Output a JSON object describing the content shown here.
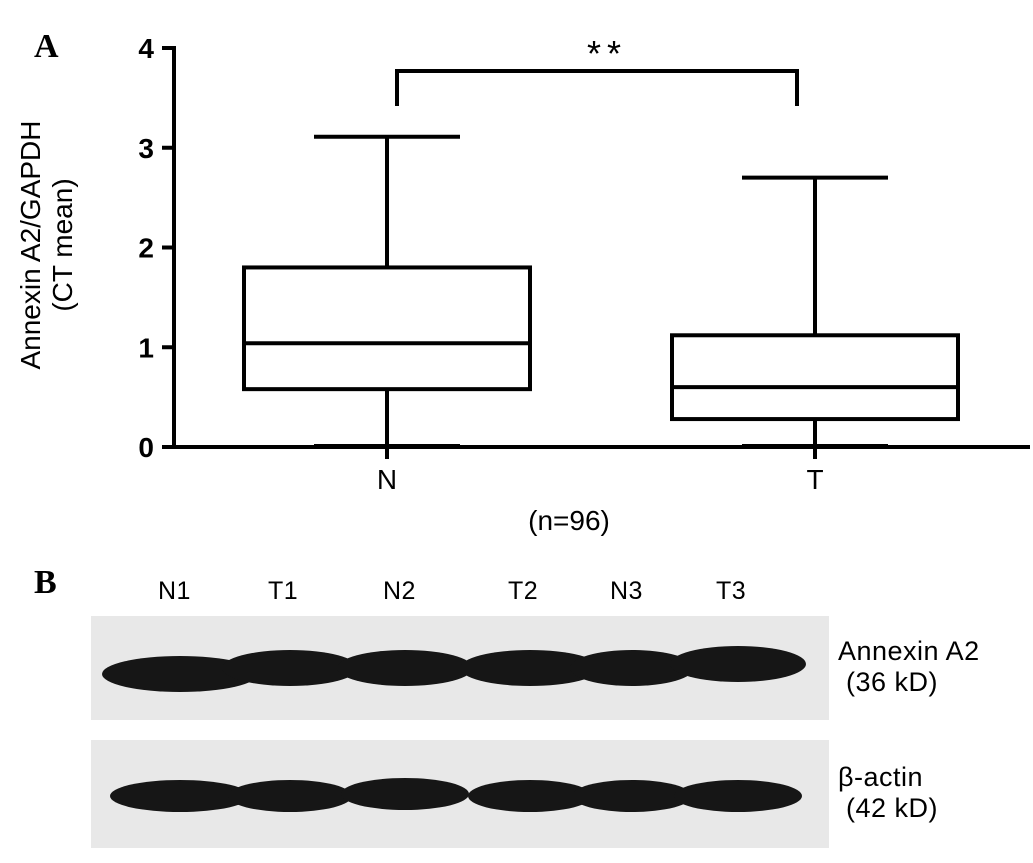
{
  "panel_a": {
    "label": "A",
    "chart_data": {
      "type": "box",
      "ylabel": "Annexin A2/GAPDH (CT mean)",
      "ylabel_lines": [
        "Annexin A2/GAPDH",
        "(CT mean)"
      ],
      "xlabel": "(n=96)",
      "ylim": [
        0,
        4
      ],
      "yticks": [
        "0",
        "1",
        "2",
        "3",
        "4"
      ],
      "categories": [
        "N",
        "T"
      ],
      "boxes": [
        {
          "category": "N",
          "min": 0.01,
          "q1": 0.58,
          "median": 1.04,
          "q3": 1.8,
          "max": 3.11
        },
        {
          "category": "T",
          "min": 0.01,
          "q1": 0.28,
          "median": 0.6,
          "q3": 1.12,
          "max": 2.7
        }
      ],
      "significance": {
        "between": [
          "N",
          "T"
        ],
        "label": "**"
      }
    }
  },
  "panel_b": {
    "label": "B",
    "lanes": [
      "N1",
      "T1",
      "N2",
      "T2",
      "N3",
      "T3"
    ],
    "blots": [
      {
        "protein": "Annexin A2",
        "size": "(36 kD)"
      },
      {
        "protein": "β-actin",
        "size": "(42 kD)"
      }
    ],
    "colors": {
      "membrane": "#e8e8e8",
      "band": "#161616"
    }
  }
}
